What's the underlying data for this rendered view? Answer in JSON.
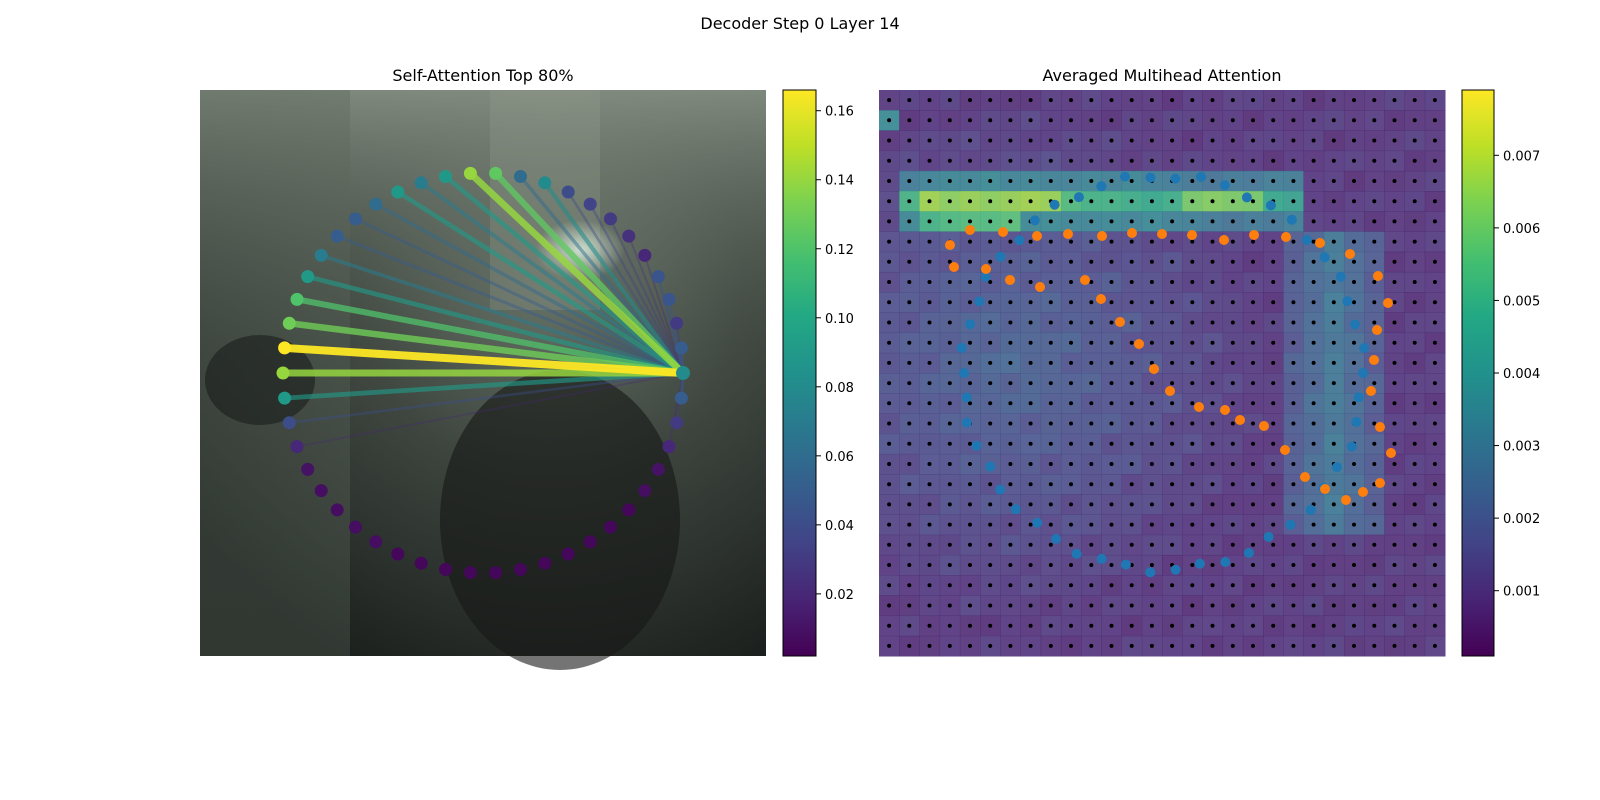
{
  "figure": {
    "suptitle": "Decoder Step 0 Layer 14"
  },
  "chart_data": [
    {
      "type": "scatter",
      "title": "Self-Attention Top 80%",
      "xlabel": "",
      "ylabel": "",
      "grid": false,
      "legend": "none",
      "colormap": "viridis",
      "colorbar": {
        "range": [
          0.002,
          0.166
        ],
        "ticks": [
          0.02,
          0.04,
          0.06,
          0.08,
          0.1,
          0.12,
          0.14,
          0.16
        ],
        "tick_labels": [
          "0.02",
          "0.04",
          "0.06",
          "0.08",
          "0.10",
          "0.12",
          "0.14",
          "0.16"
        ]
      },
      "query_point": 0,
      "attention": [
        0.08,
        0.05,
        0.03,
        0.045,
        0.045,
        0.02,
        0.025,
        0.03,
        0.035,
        0.04,
        0.08,
        0.06,
        0.125,
        0.14,
        0.09,
        0.07,
        0.09,
        0.06,
        0.05,
        0.05,
        0.07,
        0.09,
        0.12,
        0.13,
        0.166,
        0.14,
        0.09,
        0.04,
        0.02,
        0.01,
        0.008,
        0.008,
        0.008,
        0.008,
        0.005,
        0.005,
        0.005,
        0.005,
        0.005,
        0.005,
        0.005,
        0.005,
        0.005,
        0.005,
        0.005,
        0.008,
        0.01,
        0.02,
        0.03,
        0.05
      ]
    },
    {
      "type": "heatmap",
      "title": "Averaged Multihead Attention",
      "xlabel": "",
      "ylabel": "",
      "grid": false,
      "legend": "none",
      "colormap": "viridis",
      "grid_size": 28,
      "colorbar": {
        "range": [
          0.0001,
          0.0079
        ],
        "ticks": [
          0.001,
          0.002,
          0.003,
          0.004,
          0.005,
          0.006,
          0.007
        ],
        "tick_labels": [
          "0.001",
          "0.002",
          "0.003",
          "0.004",
          "0.005",
          "0.006",
          "0.007"
        ]
      },
      "series_colors": [
        "#1f77b4",
        "#ff7f0e"
      ]
    }
  ]
}
